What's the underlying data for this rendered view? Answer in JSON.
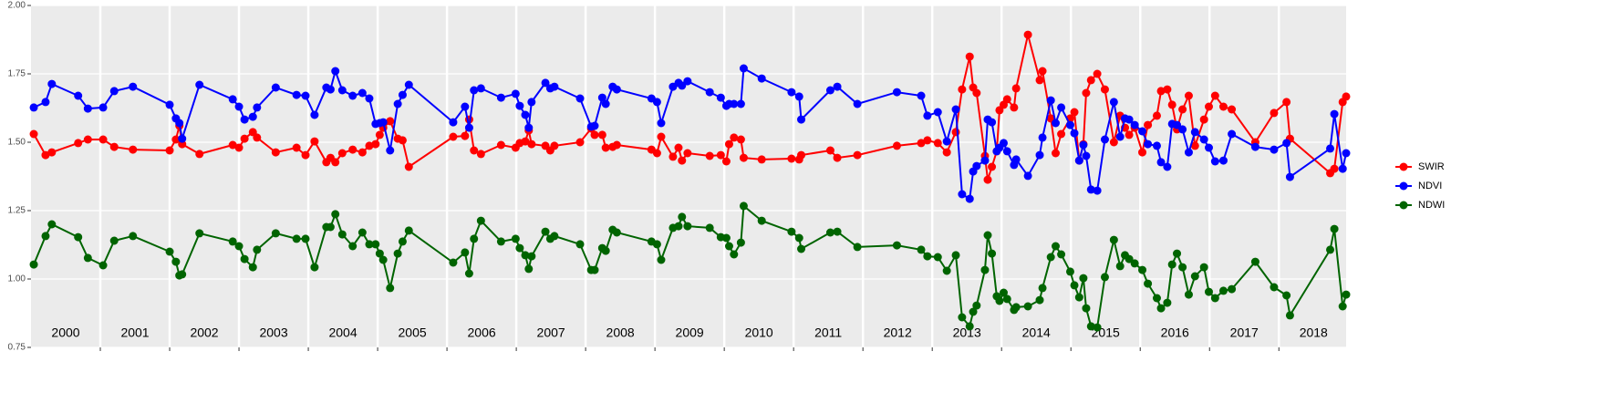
{
  "chart_data": {
    "type": "line",
    "x": [
      2000.04,
      2000.21,
      2000.3,
      2000.68,
      2000.82,
      2001.04,
      2001.2,
      2001.47,
      2002.0,
      2002.09,
      2002.14,
      2002.18,
      2002.43,
      2002.91,
      2003.0,
      2003.08,
      2003.2,
      2003.26,
      2003.53,
      2003.83,
      2003.96,
      2004.09,
      2004.26,
      2004.32,
      2004.39,
      2004.49,
      2004.64,
      2004.78,
      2004.88,
      2004.97,
      2005.03,
      2005.08,
      2005.18,
      2005.29,
      2005.36,
      2005.45,
      2006.09,
      2006.26,
      2006.32,
      2006.39,
      2006.49,
      2006.78,
      2006.99,
      2007.05,
      2007.13,
      2007.18,
      2007.22,
      2007.42,
      2007.49,
      2007.55,
      2007.92,
      2008.08,
      2008.13,
      2008.24,
      2008.29,
      2008.39,
      2008.45,
      2008.95,
      2009.03,
      2009.09,
      2009.26,
      2009.34,
      2009.39,
      2009.47,
      2009.79,
      2009.95,
      2010.03,
      2010.07,
      2010.14,
      2010.24,
      2010.28,
      2010.54,
      2010.97,
      2011.08,
      2011.11,
      2011.53,
      2011.63,
      2011.92,
      2012.49,
      2012.84,
      2012.93,
      2013.08,
      2013.21,
      2013.34,
      2013.43,
      2013.54,
      2013.59,
      2013.64,
      2013.76,
      2013.8,
      2013.86,
      2013.93,
      2013.97,
      2014.03,
      2014.08,
      2014.18,
      2014.21,
      2014.38,
      2014.55,
      2014.59,
      2014.71,
      2014.78,
      2014.86,
      2014.99,
      2015.05,
      2015.12,
      2015.18,
      2015.22,
      2015.29,
      2015.38,
      2015.49,
      2015.62,
      2015.71,
      2015.78,
      2015.84,
      2015.92,
      2016.03,
      2016.11,
      2016.24,
      2016.3,
      2016.39,
      2016.46,
      2016.53,
      2016.61,
      2016.7,
      2016.79,
      2016.92,
      2016.99,
      2017.08,
      2017.2,
      2017.32,
      2017.66,
      2017.93,
      2018.11,
      2018.16,
      2018.74,
      2018.8,
      2018.92,
      2018.97
    ],
    "series": [
      {
        "name": "SWIR",
        "color": "#ff0000",
        "values": [
          1.53,
          1.453,
          1.463,
          1.497,
          1.51,
          1.51,
          1.483,
          1.473,
          1.47,
          1.51,
          1.56,
          1.493,
          1.457,
          1.49,
          1.48,
          1.513,
          1.537,
          1.517,
          1.463,
          1.48,
          1.453,
          1.503,
          1.427,
          1.443,
          1.427,
          1.46,
          1.473,
          1.463,
          1.487,
          1.493,
          1.527,
          1.553,
          1.577,
          1.513,
          1.507,
          1.41,
          1.52,
          1.523,
          1.583,
          1.47,
          1.457,
          1.49,
          1.48,
          1.497,
          1.503,
          1.543,
          1.493,
          1.487,
          1.47,
          1.487,
          1.5,
          1.55,
          1.527,
          1.527,
          1.48,
          1.483,
          1.49,
          1.473,
          1.46,
          1.52,
          1.447,
          1.48,
          1.433,
          1.46,
          1.45,
          1.453,
          1.43,
          1.493,
          1.517,
          1.51,
          1.443,
          1.437,
          1.44,
          1.437,
          1.453,
          1.47,
          1.443,
          1.453,
          1.487,
          1.497,
          1.507,
          1.497,
          1.463,
          1.537,
          1.693,
          1.813,
          1.7,
          1.68,
          1.45,
          1.363,
          1.41,
          1.467,
          1.617,
          1.637,
          1.657,
          1.627,
          1.697,
          1.893,
          1.727,
          1.76,
          1.587,
          1.46,
          1.53,
          1.587,
          1.61,
          1.433,
          1.493,
          1.68,
          1.727,
          1.75,
          1.693,
          1.5,
          1.597,
          1.553,
          1.527,
          1.553,
          1.463,
          1.563,
          1.597,
          1.687,
          1.693,
          1.637,
          1.547,
          1.62,
          1.67,
          1.487,
          1.583,
          1.63,
          1.67,
          1.63,
          1.62,
          1.5,
          1.607,
          1.647,
          1.513,
          1.387,
          1.403,
          1.647,
          1.667
        ]
      },
      {
        "name": "NDVI",
        "color": "#0000ff",
        "values": [
          1.627,
          1.647,
          1.713,
          1.67,
          1.623,
          1.627,
          1.687,
          1.703,
          1.637,
          1.587,
          1.57,
          1.513,
          1.71,
          1.657,
          1.63,
          1.583,
          1.593,
          1.627,
          1.7,
          1.673,
          1.67,
          1.6,
          1.7,
          1.693,
          1.76,
          1.69,
          1.67,
          1.68,
          1.66,
          1.567,
          1.57,
          1.573,
          1.47,
          1.64,
          1.673,
          1.71,
          1.573,
          1.63,
          1.553,
          1.69,
          1.697,
          1.663,
          1.677,
          1.633,
          1.6,
          1.553,
          1.647,
          1.717,
          1.697,
          1.703,
          1.66,
          1.557,
          1.56,
          1.663,
          1.64,
          1.703,
          1.693,
          1.66,
          1.647,
          1.57,
          1.703,
          1.717,
          1.707,
          1.723,
          1.683,
          1.663,
          1.633,
          1.64,
          1.64,
          1.64,
          1.77,
          1.733,
          1.683,
          1.667,
          1.583,
          1.69,
          1.703,
          1.64,
          1.683,
          1.67,
          1.597,
          1.61,
          1.503,
          1.62,
          1.31,
          1.293,
          1.393,
          1.413,
          1.433,
          1.583,
          1.573,
          1.467,
          1.48,
          1.497,
          1.467,
          1.417,
          1.437,
          1.377,
          1.453,
          1.517,
          1.653,
          1.57,
          1.627,
          1.563,
          1.533,
          1.433,
          1.49,
          1.45,
          1.327,
          1.323,
          1.51,
          1.647,
          1.52,
          1.587,
          1.583,
          1.563,
          1.54,
          1.493,
          1.487,
          1.427,
          1.41,
          1.567,
          1.563,
          1.547,
          1.463,
          1.537,
          1.51,
          1.48,
          1.43,
          1.433,
          1.53,
          1.483,
          1.473,
          1.497,
          1.373,
          1.477,
          1.603,
          1.403,
          1.46
        ]
      },
      {
        "name": "NDWI",
        "color": "#006400",
        "values": [
          1.053,
          1.157,
          1.2,
          1.153,
          1.077,
          1.05,
          1.14,
          1.157,
          1.1,
          1.063,
          1.013,
          1.017,
          1.167,
          1.137,
          1.12,
          1.073,
          1.043,
          1.107,
          1.167,
          1.147,
          1.147,
          1.043,
          1.19,
          1.19,
          1.237,
          1.163,
          1.12,
          1.17,
          1.127,
          1.127,
          1.093,
          1.07,
          0.967,
          1.093,
          1.137,
          1.177,
          1.06,
          1.097,
          1.02,
          1.147,
          1.213,
          1.137,
          1.147,
          1.113,
          1.087,
          1.037,
          1.083,
          1.173,
          1.147,
          1.157,
          1.127,
          1.033,
          1.033,
          1.113,
          1.103,
          1.18,
          1.17,
          1.137,
          1.127,
          1.07,
          1.187,
          1.193,
          1.227,
          1.193,
          1.187,
          1.153,
          1.15,
          1.12,
          1.09,
          1.133,
          1.267,
          1.213,
          1.173,
          1.15,
          1.11,
          1.17,
          1.173,
          1.117,
          1.123,
          1.107,
          1.083,
          1.08,
          1.03,
          1.087,
          0.86,
          0.827,
          0.88,
          0.903,
          1.033,
          1.16,
          1.093,
          0.937,
          0.92,
          0.95,
          0.927,
          0.887,
          0.897,
          0.9,
          0.923,
          0.967,
          1.08,
          1.12,
          1.09,
          1.027,
          0.977,
          0.933,
          1.003,
          0.893,
          0.827,
          0.823,
          1.007,
          1.143,
          1.047,
          1.087,
          1.073,
          1.057,
          1.033,
          0.983,
          0.93,
          0.893,
          0.913,
          1.053,
          1.093,
          1.043,
          0.943,
          1.01,
          1.043,
          0.953,
          0.93,
          0.957,
          0.963,
          1.063,
          0.97,
          0.94,
          0.867,
          1.107,
          1.183,
          0.9,
          0.943
        ]
      }
    ],
    "xlim": [
      2000,
      2018.97
    ],
    "xticks": [
      2001,
      2002,
      2003,
      2004,
      2005,
      2006,
      2007,
      2008,
      2009,
      2010,
      2011,
      2012,
      2013,
      2014,
      2015,
      2016,
      2017,
      2018
    ],
    "year_labels": [
      {
        "value": 2000.5,
        "label": "2000"
      },
      {
        "value": 2001.5,
        "label": "2001"
      },
      {
        "value": 2002.5,
        "label": "2002"
      },
      {
        "value": 2003.5,
        "label": "2003"
      },
      {
        "value": 2004.5,
        "label": "2004"
      },
      {
        "value": 2005.5,
        "label": "2005"
      },
      {
        "value": 2006.5,
        "label": "2006"
      },
      {
        "value": 2007.5,
        "label": "2007"
      },
      {
        "value": 2008.5,
        "label": "2008"
      },
      {
        "value": 2009.5,
        "label": "2009"
      },
      {
        "value": 2010.5,
        "label": "2010"
      },
      {
        "value": 2011.5,
        "label": "2011"
      },
      {
        "value": 2012.5,
        "label": "2012"
      },
      {
        "value": 2013.5,
        "label": "2013"
      },
      {
        "value": 2014.5,
        "label": "2014"
      },
      {
        "value": 2015.5,
        "label": "2015"
      },
      {
        "value": 2016.5,
        "label": "2016"
      },
      {
        "value": 2017.5,
        "label": "2017"
      },
      {
        "value": 2018.5,
        "label": "2018"
      }
    ],
    "ylim": [
      0.75,
      2.0
    ],
    "yticks": [
      0.75,
      {
        "value": 1.0,
        "label": "1.00"
      },
      1.25,
      {
        "value": 1.5,
        "label": "1.50"
      },
      1.75,
      {
        "value": 2.0,
        "label": "2.00"
      }
    ],
    "grid": true,
    "legend": "right"
  }
}
